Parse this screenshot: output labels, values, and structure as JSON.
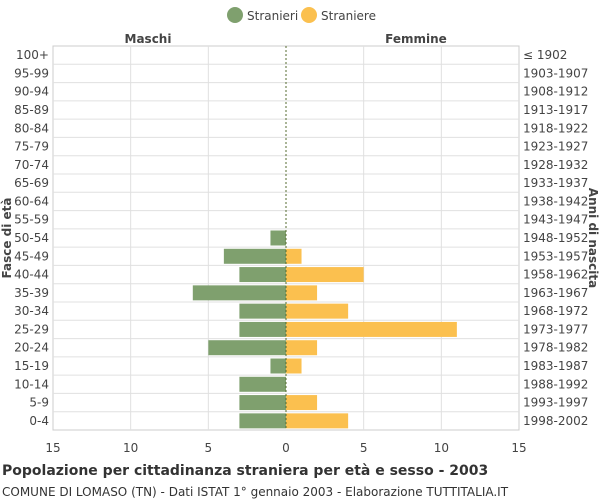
{
  "chart_data": {
    "type": "bar",
    "orientation": "horizontal-population-pyramid",
    "title": "Popolazione per cittadinanza straniera per età e sesso - 2003",
    "subtitle": "COMUNE DI LOMASO (TN) - Dati ISTAT 1° gennaio 2003 - Elaborazione TUTTITALIA.IT",
    "left_header": "Maschi",
    "right_header": "Femmine",
    "ylabel_left": "Fasce di età",
    "ylabel_right": "Anni di nascita",
    "xlim": [
      -15,
      15
    ],
    "x_ticks": [
      "15",
      "10",
      "5",
      "0",
      "5",
      "10",
      "15"
    ],
    "grid": true,
    "legend": "top-center",
    "age_groups": [
      "100+",
      "95-99",
      "90-94",
      "85-89",
      "80-84",
      "75-79",
      "70-74",
      "65-69",
      "60-64",
      "55-59",
      "50-54",
      "45-49",
      "40-44",
      "35-39",
      "30-34",
      "25-29",
      "20-24",
      "15-19",
      "10-14",
      "5-9",
      "0-4"
    ],
    "birth_years": [
      "≤ 1902",
      "1903-1907",
      "1908-1912",
      "1913-1917",
      "1918-1922",
      "1923-1927",
      "1928-1932",
      "1933-1937",
      "1938-1942",
      "1943-1947",
      "1948-1952",
      "1953-1957",
      "1958-1962",
      "1963-1967",
      "1968-1972",
      "1973-1977",
      "1978-1982",
      "1983-1987",
      "1988-1992",
      "1993-1997",
      "1998-2002"
    ],
    "series": [
      {
        "name": "Stranieri",
        "color": "#7fa06e",
        "values": [
          0,
          0,
          0,
          0,
          0,
          0,
          0,
          0,
          0,
          0,
          1,
          4,
          3,
          6,
          3,
          3,
          5,
          1,
          3,
          3,
          3
        ]
      },
      {
        "name": "Straniere",
        "color": "#fbc04f",
        "values": [
          0,
          0,
          0,
          0,
          0,
          0,
          0,
          0,
          0,
          0,
          0,
          1,
          5,
          2,
          4,
          11,
          2,
          1,
          0,
          2,
          4
        ]
      }
    ]
  }
}
